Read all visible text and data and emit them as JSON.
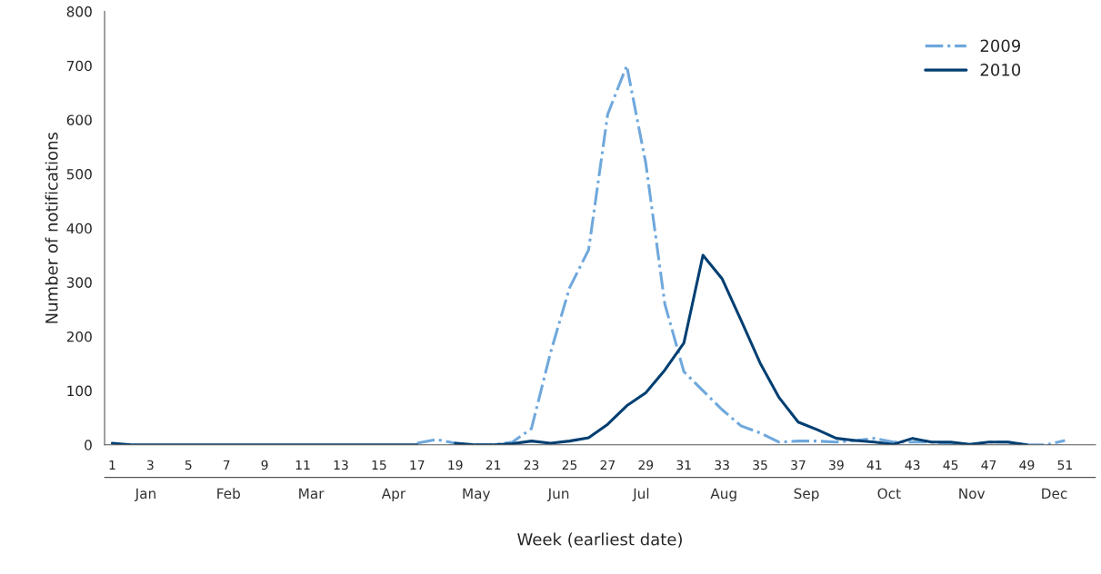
{
  "chart_data": {
    "type": "line",
    "xlabel": "Week (earliest date)",
    "ylabel": "Number of notifications",
    "xlim": [
      0.6,
      52.6
    ],
    "xticks": [
      1,
      3,
      5,
      7,
      9,
      11,
      13,
      15,
      17,
      19,
      21,
      23,
      25,
      27,
      29,
      31,
      33,
      35,
      37,
      39,
      41,
      43,
      45,
      47,
      49,
      51
    ],
    "annotations": [
      "Jan",
      "Feb",
      "Mar",
      "Apr",
      "May",
      "Jun",
      "Jul",
      "Aug",
      "Sep",
      "Oct",
      "Nov",
      "Dec"
    ],
    "ylim": [
      0,
      800
    ],
    "yticks": [
      0,
      100,
      200,
      300,
      400,
      500,
      600,
      700,
      800
    ],
    "grid": false,
    "legend": "top right",
    "marker": "none",
    "series": [
      {
        "name": "2009",
        "color": "#6fa8dc",
        "line_style": "dashdot",
        "x": [
          17,
          18,
          19,
          20,
          21,
          22,
          23,
          24,
          25,
          26,
          27,
          28,
          29,
          30,
          31,
          32,
          33,
          34,
          35,
          36,
          37,
          38,
          39,
          40,
          41,
          42,
          43,
          44,
          45,
          46,
          47,
          48,
          49,
          50,
          51
        ],
        "values": [
          3,
          10,
          3,
          0,
          0,
          5,
          30,
          170,
          290,
          360,
          610,
          700,
          520,
          260,
          135,
          100,
          65,
          35,
          22,
          5,
          7,
          7,
          5,
          8,
          12,
          5,
          5,
          5,
          3,
          0,
          5,
          5,
          0,
          0,
          8
        ]
      },
      {
        "name": "2010",
        "color": "#003f72",
        "line_style": "solid",
        "x": [
          1,
          2,
          16,
          17,
          18,
          19,
          20,
          21,
          22,
          23,
          24,
          25,
          26,
          27,
          28,
          29,
          30,
          31,
          32,
          33,
          34,
          35,
          36,
          37,
          38,
          39,
          40,
          41,
          42,
          43,
          44,
          45,
          46,
          47,
          48,
          49
        ],
        "values": [
          3,
          0,
          0,
          0,
          null,
          3,
          0,
          0,
          2,
          7,
          3,
          7,
          13,
          38,
          72,
          96,
          138,
          188,
          350,
          307,
          230,
          151,
          87,
          42,
          28,
          12,
          8,
          5,
          1,
          12,
          5,
          5,
          1,
          5,
          5,
          0
        ]
      }
    ]
  }
}
